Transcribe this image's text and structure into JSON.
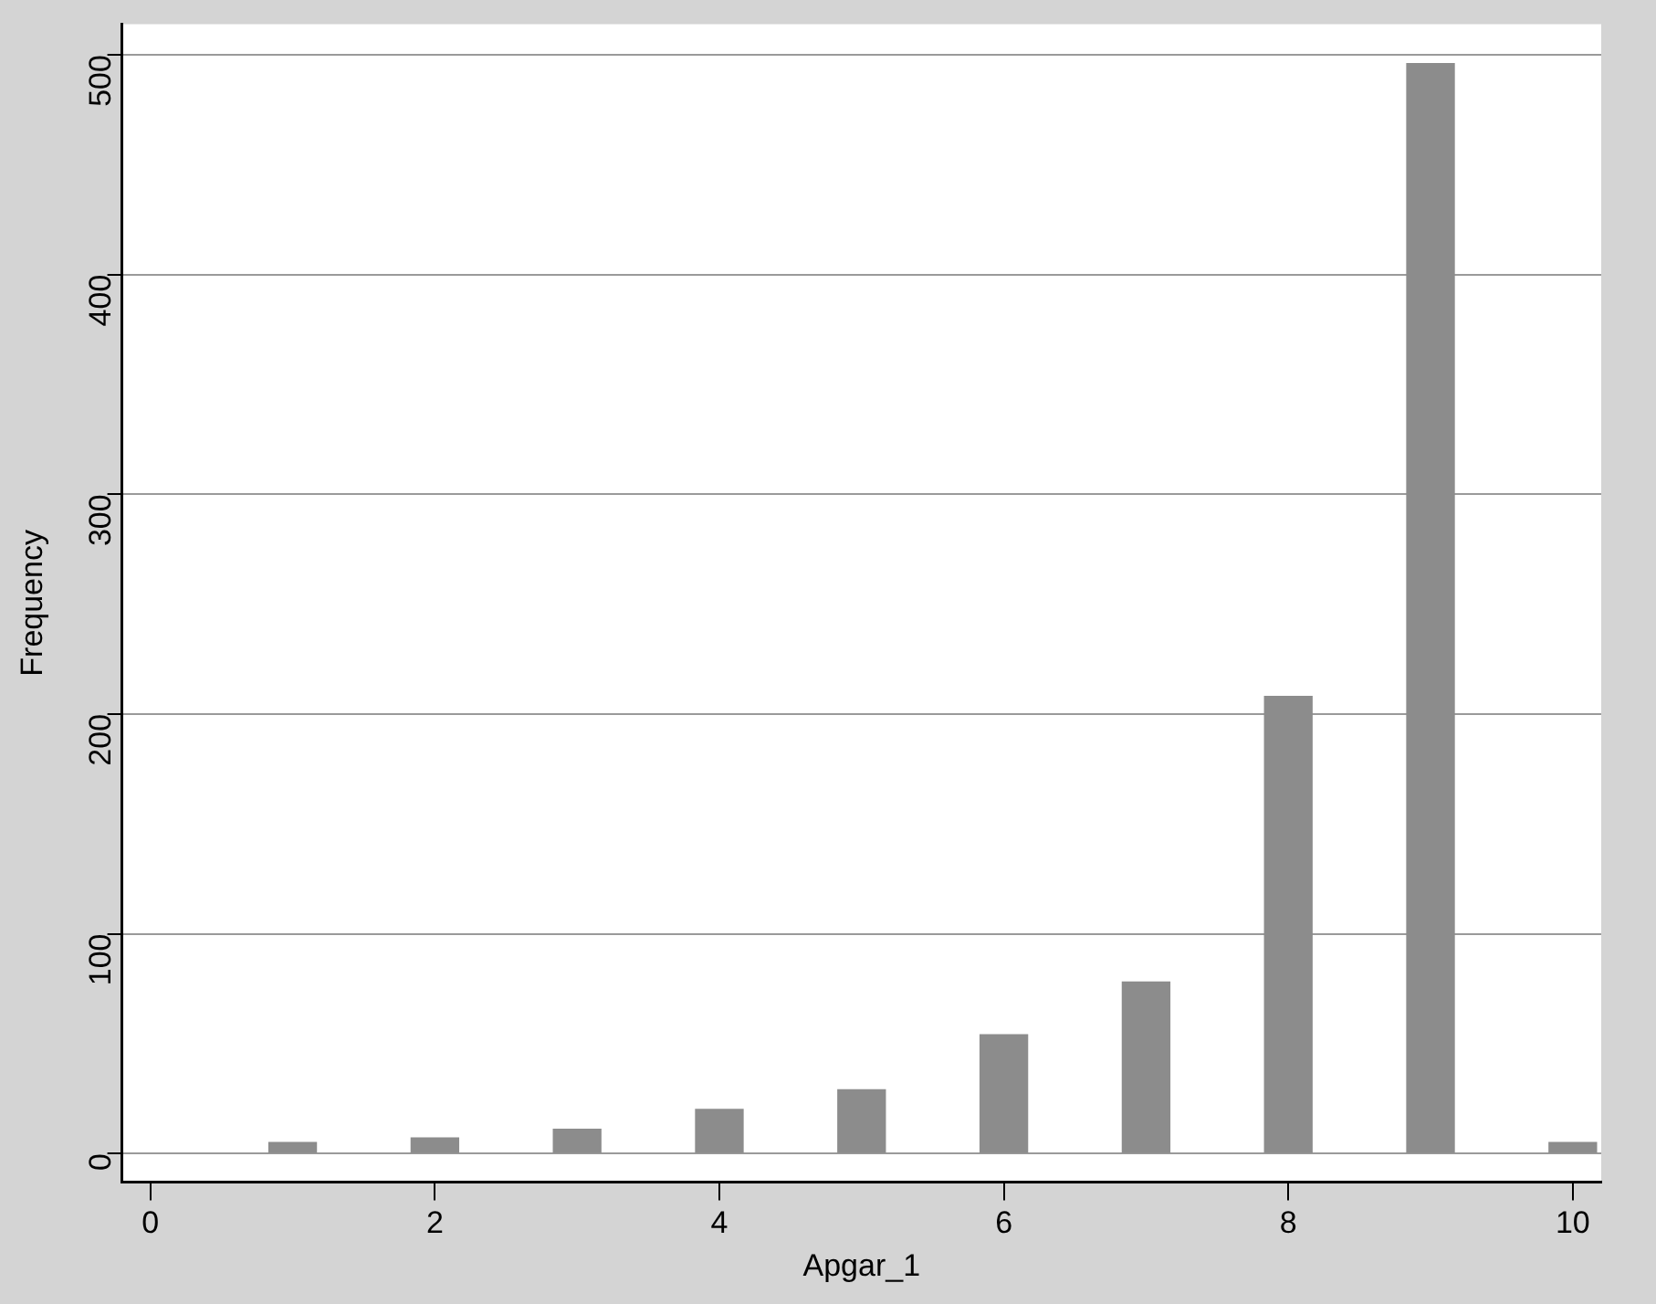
{
  "chart_data": {
    "type": "bar",
    "xlabel": "Apgar_1",
    "ylabel": "Frequency",
    "x": [
      1,
      2,
      3,
      4,
      5,
      6,
      7,
      8,
      9,
      10
    ],
    "values": [
      5,
      7,
      11,
      20,
      29,
      54,
      78,
      208,
      496,
      5
    ],
    "color": "#8c8c8c",
    "xlim": [
      -0.2,
      10.2
    ],
    "xticks": [
      0,
      2,
      4,
      6,
      8,
      10
    ],
    "ylim": [
      -13,
      514
    ],
    "yticks": [
      0,
      100,
      200,
      300,
      400,
      500
    ],
    "grid": "y",
    "legend": false
  }
}
